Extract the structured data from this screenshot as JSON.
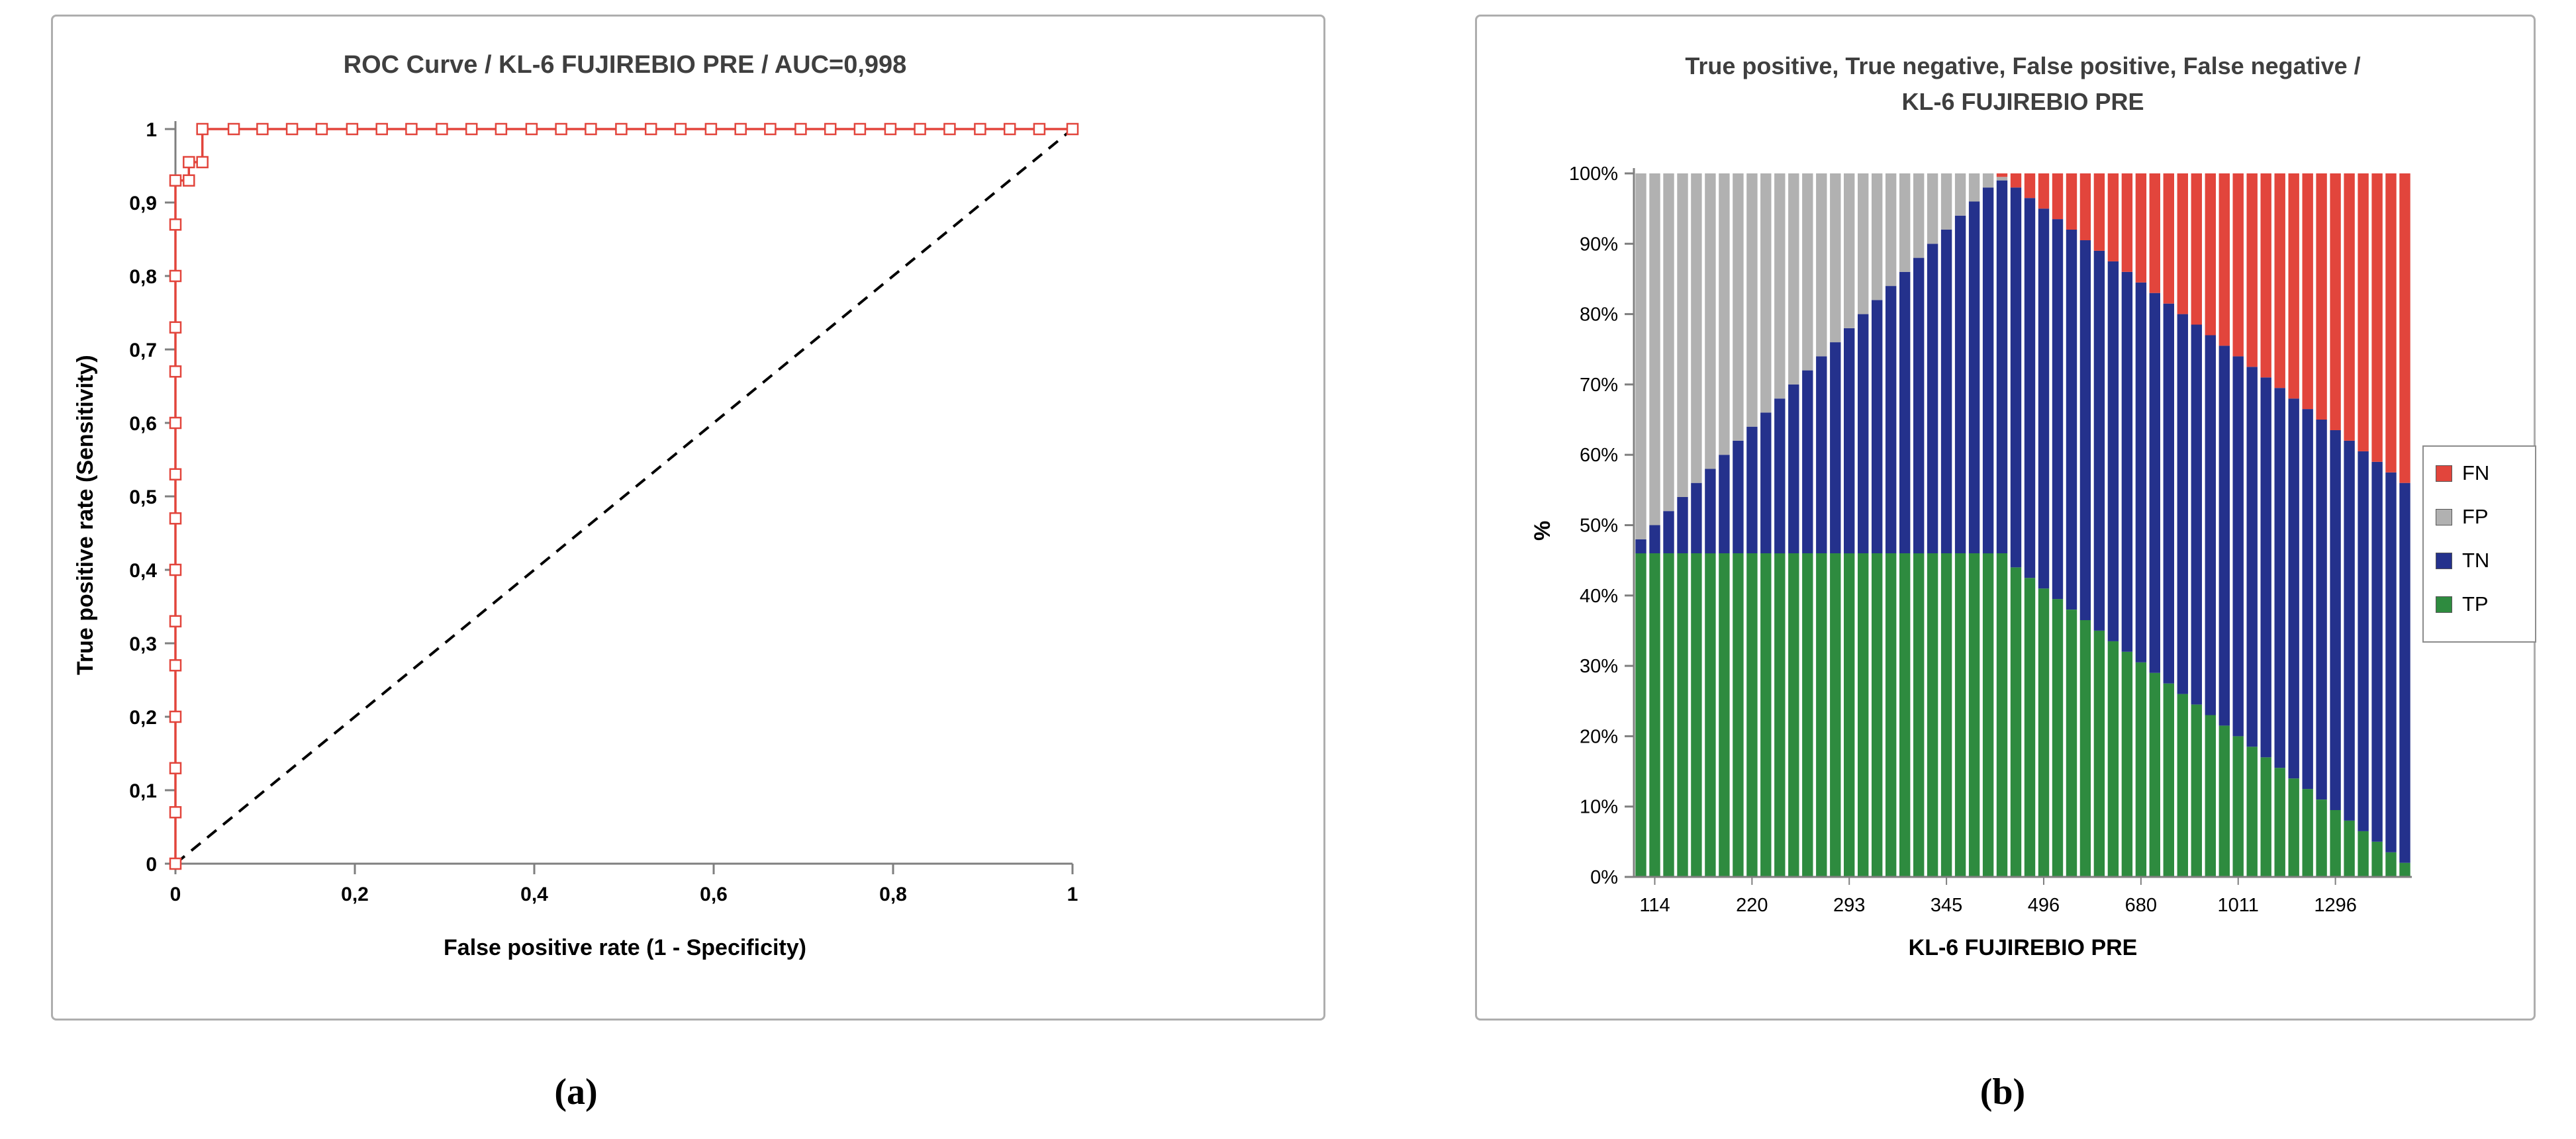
{
  "figure": {
    "panel_a_label": "(a)",
    "panel_b_label": "(b)"
  },
  "chart_data": [
    {
      "type": "line",
      "title": "ROC Curve / KL-6 FUJIREBIO PRE / AUC=0,998",
      "auc_label": "AUC=0,998",
      "x_axis": {
        "title": "False positive rate (1 - Specificity)",
        "tick_labels": [
          "0",
          "0,2",
          "0,4",
          "0,6",
          "0,8",
          "1"
        ],
        "tick_values": [
          0,
          0.2,
          0.4,
          0.6,
          0.8,
          1
        ],
        "range": [
          0,
          1
        ]
      },
      "y_axis": {
        "title": "True positive rate (Sensitivity)",
        "tick_labels": [
          "0",
          "0,1",
          "0,2",
          "0,3",
          "0,4",
          "0,5",
          "0,6",
          "0,7",
          "0,8",
          "0,9",
          "1"
        ],
        "tick_values": [
          0,
          0.1,
          0.2,
          0.3,
          0.4,
          0.5,
          0.6,
          0.7,
          0.8,
          0.9,
          1
        ],
        "range": [
          0,
          1
        ]
      },
      "curve_color": "#e2453c",
      "marker": "open-square",
      "diagonal": {
        "style": "dashed",
        "color": "#000000",
        "from": [
          0,
          0
        ],
        "to": [
          1,
          1
        ]
      },
      "points": [
        [
          0,
          0
        ],
        [
          0,
          0.07
        ],
        [
          0,
          0.13
        ],
        [
          0,
          0.2
        ],
        [
          0,
          0.27
        ],
        [
          0,
          0.33
        ],
        [
          0,
          0.4
        ],
        [
          0,
          0.47
        ],
        [
          0,
          0.53
        ],
        [
          0,
          0.6
        ],
        [
          0,
          0.67
        ],
        [
          0,
          0.73
        ],
        [
          0,
          0.8
        ],
        [
          0,
          0.87
        ],
        [
          0,
          0.93
        ],
        [
          0.015,
          0.93
        ],
        [
          0.015,
          0.955
        ],
        [
          0.03,
          0.955
        ],
        [
          0.03,
          1
        ],
        [
          0.065,
          1
        ],
        [
          0.097,
          1
        ],
        [
          0.13,
          1
        ],
        [
          0.163,
          1
        ],
        [
          0.197,
          1
        ],
        [
          0.23,
          1
        ],
        [
          0.263,
          1
        ],
        [
          0.297,
          1
        ],
        [
          0.33,
          1
        ],
        [
          0.363,
          1
        ],
        [
          0.397,
          1
        ],
        [
          0.43,
          1
        ],
        [
          0.463,
          1
        ],
        [
          0.497,
          1
        ],
        [
          0.53,
          1
        ],
        [
          0.563,
          1
        ],
        [
          0.597,
          1
        ],
        [
          0.63,
          1
        ],
        [
          0.663,
          1
        ],
        [
          0.697,
          1
        ],
        [
          0.73,
          1
        ],
        [
          0.763,
          1
        ],
        [
          0.797,
          1
        ],
        [
          0.83,
          1
        ],
        [
          0.863,
          1
        ],
        [
          0.897,
          1
        ],
        [
          0.93,
          1
        ],
        [
          0.963,
          1
        ],
        [
          1,
          1
        ]
      ]
    },
    {
      "type": "bar",
      "stacked": true,
      "title_line1": "True positive, True negative, False positive, False negative /",
      "title_line2": "KL-6 FUJIREBIO PRE",
      "x_axis": {
        "title": "KL-6 FUJIREBIO PRE",
        "tick_labels": [
          "114",
          "220",
          "293",
          "345",
          "496",
          "680",
          "1011",
          "1296"
        ],
        "tick_bar_indices": [
          1,
          8,
          15,
          22,
          29,
          36,
          43,
          50
        ]
      },
      "y_axis": {
        "title": "%",
        "tick_labels": [
          "0%",
          "10%",
          "20%",
          "30%",
          "40%",
          "50%",
          "60%",
          "70%",
          "80%",
          "90%",
          "100%"
        ],
        "tick_values": [
          0,
          10,
          20,
          30,
          40,
          50,
          60,
          70,
          80,
          90,
          100
        ],
        "range": [
          0,
          100
        ]
      },
      "legend": [
        {
          "label": "FN",
          "color": "#e2453c"
        },
        {
          "label": "FP",
          "color": "#b1b1b1"
        },
        {
          "label": "TN",
          "color": "#24318c"
        },
        {
          "label": "TP",
          "color": "#2e8b3f"
        }
      ],
      "series_order_bottom_to_top": [
        "TP",
        "TN",
        "FP",
        "FN"
      ],
      "series": {
        "TP": [
          46,
          46,
          46,
          46,
          46,
          46,
          46,
          46,
          46,
          46,
          46,
          46,
          46,
          46,
          46,
          46,
          46,
          46,
          46,
          46,
          46,
          46,
          46,
          46,
          46,
          46,
          46,
          44,
          42.5,
          41,
          39.5,
          38,
          36.5,
          35,
          33.5,
          32,
          30.5,
          29,
          27.5,
          26,
          24.5,
          23,
          21.5,
          20,
          18.5,
          17,
          15.5,
          14,
          12.5,
          11,
          9.5,
          8,
          6.5,
          5,
          3.5,
          2
        ],
        "TN": [
          2,
          4,
          6,
          8,
          10,
          12,
          14,
          16,
          18,
          20,
          22,
          24,
          26,
          28,
          30,
          32,
          34,
          36,
          38,
          40,
          42,
          44,
          46,
          48,
          50,
          52,
          53,
          54,
          54,
          54,
          54,
          54,
          54,
          54,
          54,
          54,
          54,
          54,
          54,
          54,
          54,
          54,
          54,
          54,
          54,
          54,
          54,
          54,
          54,
          54,
          54,
          54,
          54,
          54,
          54,
          54
        ],
        "FP": [
          52,
          50,
          48,
          46,
          44,
          42,
          40,
          38,
          36,
          34,
          32,
          30,
          28,
          26,
          24,
          22,
          20,
          18,
          16,
          14,
          12,
          10,
          8,
          6,
          4,
          2,
          0.5,
          0,
          0,
          0,
          0,
          0,
          0,
          0,
          0,
          0,
          0,
          0,
          0,
          0,
          0,
          0,
          0,
          0,
          0,
          0,
          0,
          0,
          0,
          0,
          0,
          0,
          0,
          0,
          0,
          0
        ],
        "FN": [
          0,
          0,
          0,
          0,
          0,
          0,
          0,
          0,
          0,
          0,
          0,
          0,
          0,
          0,
          0,
          0,
          0,
          0,
          0,
          0,
          0,
          0,
          0,
          0,
          0,
          0,
          0.5,
          2,
          3.5,
          5,
          6.5,
          8,
          9.5,
          11,
          12.5,
          14,
          15.5,
          17,
          18.5,
          20,
          21.5,
          23,
          24.5,
          26,
          27.5,
          29,
          30.5,
          32,
          33.5,
          35,
          36.5,
          38,
          39.5,
          41,
          42.5,
          44
        ]
      }
    }
  ]
}
